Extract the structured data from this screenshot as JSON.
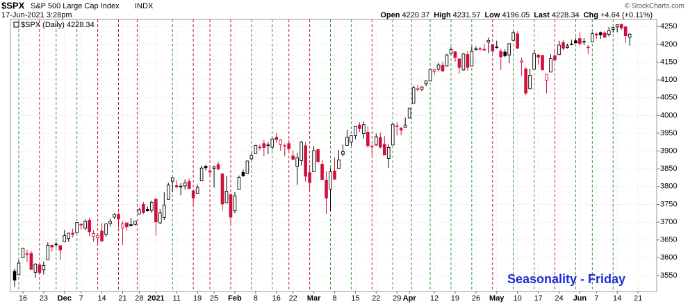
{
  "header": {
    "symbol": "$SPX",
    "name": "S&P 500 Large Cap Index",
    "exchange": "INDX",
    "timestamp": "17-Jun-2021 3:28pm",
    "quote": [
      {
        "label": "Open",
        "value": "4220.37"
      },
      {
        "label": "High",
        "value": "4231.57"
      },
      {
        "label": "Low",
        "value": "4196.05"
      },
      {
        "label": "Last",
        "value": "4228.34"
      },
      {
        "label": "Chg",
        "value": "+4.64 (+0.11%)"
      }
    ],
    "copyright": "© StockCharts.com"
  },
  "chart_data": {
    "type": "candlestick",
    "legend": "$SPX (Daily) 4228.34",
    "annotation": "Seasonality - Friday",
    "open": [
      3562,
      3552,
      3600,
      3611,
      3612,
      3559,
      3580,
      3566,
      3594,
      3635,
      3638,
      3634,
      3645,
      3654,
      3669,
      3670,
      3694,
      3683,
      3705,
      3659,
      3656,
      3675,
      3666,
      3696,
      3714,
      3722,
      3684,
      3698,
      3693,
      3694,
      3723,
      3750,
      3736,
      3733,
      3764,
      3698,
      3713,
      3764,
      3815,
      3803,
      3801,
      3802,
      3814,
      3788,
      3781,
      3816,
      3857,
      3844,
      3851,
      3862,
      3836,
      3755,
      3778,
      3732,
      3792,
      3840,
      3837,
      3878,
      3893,
      3911,
      3921,
      3917,
      3911,
      3939,
      3918,
      3915,
      3921,
      3886,
      3857,
      3873,
      3915,
      3839,
      3842,
      3904,
      3863,
      3818,
      3793,
      3844,
      3851,
      3891,
      3916,
      3925,
      3943,
      3973,
      3949,
      3953,
      3913,
      3917,
      3938,
      3919,
      3879,
      3917,
      3969,
      3964,
      3967,
      3993,
      4034,
      4075,
      4074,
      4089,
      4097,
      4124,
      4130,
      4141,
      4139,
      4174,
      4179,
      4159,
      4128,
      4171,
      4139,
      4185,
      4188,
      4186,
      4206,
      4199,
      4191,
      4180,
      4178,
      4170,
      4211,
      4229,
      4150,
      4131,
      4075,
      4130,
      4170,
      4169,
      4099,
      4122,
      4168,
      4171,
      4205,
      4191,
      4201,
      4210,
      4216,
      4207,
      4191,
      4207,
      4229,
      4233,
      4232,
      4228,
      4242,
      4249,
      4256,
      4249,
      4220.37
    ],
    "high": [
      3569,
      3593,
      3628,
      3623,
      3619,
      3585,
      3582,
      3589,
      3643,
      3635,
      3645,
      3634,
      3678,
      3670,
      3682,
      3699,
      3697,
      3708,
      3712,
      3678,
      3665,
      3697,
      3695,
      3711,
      3725,
      3726,
      3702,
      3698,
      3712,
      3703,
      3740,
      3757,
      3744,
      3760,
      3769,
      3737,
      3784,
      3811,
      3826,
      3818,
      3810,
      3820,
      3823,
      3789,
      3805,
      3859,
      3861,
      3852,
      3859,
      3870,
      3836,
      3830,
      3778,
      3784,
      3831,
      3848,
      3872,
      3894,
      3916,
      3918,
      3931,
      3925,
      3935,
      3950,
      3933,
      3921,
      3931,
      3902,
      3895,
      3928,
      3925,
      3861,
      3914,
      3906,
      3875,
      3843,
      3852,
      3882,
      3903,
      3918,
      3960,
      3944,
      3970,
      3981,
      3983,
      3969,
      3919,
      3949,
      3952,
      3942,
      3919,
      3978,
      3981,
      3968,
      3994,
      4020,
      4084,
      4086,
      4083,
      4098,
      4129,
      4131,
      4148,
      4151,
      4173,
      4192,
      4181,
      4160,
      4175,
      4180,
      4194,
      4194,
      4193,
      4201,
      4219,
      4199,
      4210,
      4187,
      4186,
      4202,
      4238,
      4237,
      4162,
      4135,
      4131,
      4184,
      4172,
      4170,
      4116,
      4172,
      4188,
      4210,
      4213,
      4202,
      4213,
      4218,
      4234,
      4217,
      4198,
      4234,
      4232,
      4236,
      4237,
      4249,
      4249,
      4255,
      4258,
      4252,
      4231.57
    ],
    "low": [
      3518,
      3552,
      3600,
      3588,
      3567,
      3543,
      3556,
      3553,
      3594,
      3617,
      3629,
      3594,
      3645,
      3645,
      3657,
      3670,
      3679,
      3678,
      3660,
      3645,
      3634,
      3645,
      3659,
      3688,
      3710,
      3685,
      3636,
      3676,
      3689,
      3690,
      3723,
      3723,
      3730,
      3726,
      3662,
      3695,
      3706,
      3764,
      3784,
      3796,
      3776,
      3792,
      3792,
      3749,
      3780,
      3816,
      3845,
      3830,
      3797,
      3847,
      3732,
      3755,
      3694,
      3725,
      3792,
      3828,
      3837,
      3874,
      3892,
      3903,
      3885,
      3891,
      3904,
      3923,
      3901,
      3885,
      3900,
      3874,
      3805,
      3859,
      3814,
      3789,
      3842,
      3868,
      3819,
      3723,
      3731,
      3819,
      3851,
      3885,
      3916,
      3915,
      3933,
      3954,
      3935,
      3910,
      3885,
      3915,
      3907,
      3889,
      3853,
      3917,
      3944,
      3944,
      3967,
      3993,
      4034,
      4068,
      4068,
      4082,
      4096,
      4114,
      4124,
      4123,
      4139,
      4171,
      4151,
      4118,
      4126,
      4126,
      4139,
      4182,
      4182,
      4181,
      4175,
      4175,
      4188,
      4128,
      4164,
      4147,
      4211,
      4188,
      4111,
      4057,
      4075,
      4130,
      4143,
      4127,
      4062,
      4122,
      4151,
      4171,
      4183,
      4188,
      4197,
      4203,
      4197,
      4198,
      4173,
      4206,
      4215,
      4215,
      4219,
      4222,
      4233,
      4234,
      4240,
      4204,
      4196.05
    ],
    "close": [
      3537,
      3585,
      3627,
      3610,
      3567,
      3582,
      3558,
      3578,
      3635,
      3630,
      3638,
      3622,
      3662,
      3669,
      3666,
      3699,
      3692,
      3702,
      3673,
      3668,
      3663,
      3647,
      3695,
      3702,
      3722,
      3709,
      3695,
      3687,
      3690,
      3703,
      3735,
      3727,
      3732,
      3756,
      3701,
      3726,
      3748,
      3804,
      3825,
      3799,
      3801,
      3810,
      3795,
      3768,
      3798,
      3852,
      3853,
      3841,
      3855,
      3849,
      3751,
      3787,
      3714,
      3774,
      3826,
      3830,
      3872,
      3887,
      3916,
      3911,
      3910,
      3916,
      3934,
      3932,
      3931,
      3914,
      3906,
      3877,
      3881,
      3925,
      3829,
      3811,
      3901,
      3870,
      3820,
      3768,
      3842,
      3821,
      3875,
      3898,
      3939,
      3943,
      3969,
      3963,
      3974,
      3915,
      3913,
      3940,
      3911,
      3889,
      3910,
      3975,
      3971,
      3959,
      3973,
      4020,
      4078,
      4074,
      4080,
      4097,
      4129,
      4128,
      4142,
      4125,
      4170,
      4185,
      4163,
      4135,
      4173,
      4135,
      4180,
      4188,
      4187,
      4184,
      4211,
      4181,
      4193,
      4165,
      4168,
      4202,
      4233,
      4189,
      4153,
      4063,
      4113,
      4174,
      4164,
      4128,
      4116,
      4160,
      4156,
      4198,
      4189,
      4196,
      4201,
      4204,
      4202,
      4208,
      4192,
      4230,
      4226,
      4227,
      4220,
      4239,
      4247,
      4255,
      4246,
      4224,
      4228.34
    ],
    "up_color": "#000000",
    "down_color": "#d0103a",
    "xlim": [
      -1,
      154.5
    ],
    "xticks": [
      {
        "value": 2,
        "label": "16"
      },
      {
        "value": 7,
        "label": "23"
      },
      {
        "value": 12,
        "label": "Dec"
      },
      {
        "value": 16,
        "label": "7"
      },
      {
        "value": 21,
        "label": "14"
      },
      {
        "value": 26,
        "label": "21"
      },
      {
        "value": 30,
        "label": "28"
      },
      {
        "value": 34,
        "label": "2021"
      },
      {
        "value": 39,
        "label": "11"
      },
      {
        "value": 44,
        "label": "19"
      },
      {
        "value": 48,
        "label": "25"
      },
      {
        "value": 53,
        "label": "Feb"
      },
      {
        "value": 58,
        "label": "8"
      },
      {
        "value": 63,
        "label": "16"
      },
      {
        "value": 67,
        "label": "22"
      },
      {
        "value": 72,
        "label": "Mar"
      },
      {
        "value": 77,
        "label": "8"
      },
      {
        "value": 82,
        "label": "15"
      },
      {
        "value": 87,
        "label": "22"
      },
      {
        "value": 92,
        "label": "29"
      },
      {
        "value": 95,
        "label": "Apr"
      },
      {
        "value": 101,
        "label": "12"
      },
      {
        "value": 106,
        "label": "19"
      },
      {
        "value": 111,
        "label": "26"
      },
      {
        "value": 116,
        "label": "May"
      },
      {
        "value": 121,
        "label": "10"
      },
      {
        "value": 126,
        "label": "17"
      },
      {
        "value": 131,
        "label": "24"
      },
      {
        "value": 136,
        "label": "Jun"
      },
      {
        "value": 140,
        "label": "7"
      },
      {
        "value": 145,
        "label": "14"
      },
      {
        "value": 150,
        "label": "21"
      }
    ],
    "ylim": [
      3505,
      4270
    ],
    "yticks": [
      3550,
      3600,
      3650,
      3700,
      3750,
      3800,
      3850,
      3900,
      3950,
      4000,
      4050,
      4100,
      4150,
      4200,
      4250
    ],
    "grid": true,
    "event_lines": [
      {
        "x": 1,
        "color": "#2a9a2a"
      },
      {
        "x": 6,
        "color": "#d0103a"
      },
      {
        "x": 10,
        "color": "#2a9a2a"
      },
      {
        "x": 15,
        "color": "#2a9a2a"
      },
      {
        "x": 20,
        "color": "#d0103a"
      },
      {
        "x": 25,
        "color": "#d0103a"
      },
      {
        "x": 29.5,
        "color": "#d0103a"
      },
      {
        "x": 38,
        "color": "#2a9a2a"
      },
      {
        "x": 43,
        "color": "#d0103a"
      },
      {
        "x": 47,
        "color": "#d0103a"
      },
      {
        "x": 52,
        "color": "#d0103a"
      },
      {
        "x": 57,
        "color": "#2a9a2a"
      },
      {
        "x": 62,
        "color": "#2a9a2a"
      },
      {
        "x": 66,
        "color": "#d0103a"
      },
      {
        "x": 71,
        "color": "#d0103a"
      },
      {
        "x": 76,
        "color": "#2a9a2a"
      },
      {
        "x": 81,
        "color": "#2a9a2a"
      },
      {
        "x": 86,
        "color": "#d0103a"
      },
      {
        "x": 91,
        "color": "#2a9a2a"
      },
      {
        "x": 95.5,
        "color": "#2a9a2a"
      },
      {
        "x": 100,
        "color": "#2a9a2a"
      },
      {
        "x": 105,
        "color": "#2a9a2a"
      },
      {
        "x": 110,
        "color": "#2a9a2a"
      },
      {
        "x": 115,
        "color": "#d0103a"
      },
      {
        "x": 120,
        "color": "#2a9a2a"
      },
      {
        "x": 125,
        "color": "#2a9a2a"
      },
      {
        "x": 130,
        "color": "#d0103a"
      },
      {
        "x": 135,
        "color": "#2a9a2a"
      },
      {
        "x": 139,
        "color": "#2a9a2a"
      },
      {
        "x": 144,
        "color": "#2a9a2a"
      }
    ]
  }
}
